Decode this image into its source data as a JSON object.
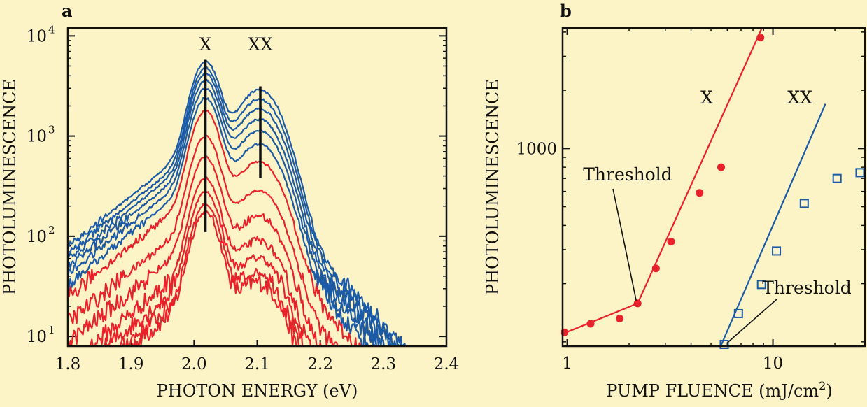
{
  "panel_labels": {
    "a": "a",
    "b": "b"
  },
  "chart_data": [
    {
      "type": "line",
      "panel": "a",
      "xlabel": "PHOTON ENERGY (eV)",
      "ylabel": "PHOTOLUMINESCENCE",
      "xlim": [
        1.8,
        2.4
      ],
      "ylim": [
        8,
        12000
      ],
      "yscale": "log",
      "xticks": [
        1.8,
        1.9,
        2.0,
        2.1,
        2.2,
        2.3,
        2.4
      ],
      "xtick_labels": [
        "1.8",
        "1.9",
        "2.0",
        "2.1",
        "2.2",
        "2.3",
        "2.4"
      ],
      "yticks": [
        10,
        100,
        1000,
        10000
      ],
      "ytick_labels": [
        {
          "base": "10",
          "exp": "1"
        },
        {
          "base": "10",
          "exp": "2"
        },
        {
          "base": "10",
          "exp": "3"
        },
        {
          "base": "10",
          "exp": "4"
        }
      ],
      "markers": [
        {
          "label": "X",
          "x": 2.018,
          "ytop": 7000,
          "ybottom": 110
        },
        {
          "label": "XX",
          "x": 2.105,
          "ytop": 3800,
          "ybottom": 380
        }
      ],
      "series_template": {
        "xx_ratio": 0.38,
        "left_tail_decay": 0.085,
        "right_tail_decay": 0.065
      },
      "series": [
        {
          "name": "red-1",
          "color": "#e8212a",
          "peak": 175,
          "xx_ratio": 0.15
        },
        {
          "name": "red-2",
          "color": "#e8212a",
          "peak": 210,
          "xx_ratio": 0.16
        },
        {
          "name": "red-3",
          "color": "#e8212a",
          "peak": 280,
          "xx_ratio": 0.17
        },
        {
          "name": "red-4",
          "color": "#e8212a",
          "peak": 380,
          "xx_ratio": 0.19
        },
        {
          "name": "red-5",
          "color": "#e8212a",
          "peak": 620,
          "xx_ratio": 0.21
        },
        {
          "name": "red-6",
          "color": "#e8212a",
          "peak": 1000,
          "xx_ratio": 0.24
        },
        {
          "name": "red-7",
          "color": "#e8212a",
          "peak": 1800,
          "xx_ratio": 0.26
        },
        {
          "name": "blue-1",
          "color": "#1b5aa6",
          "peak": 2400,
          "xx_ratio": 0.3
        },
        {
          "name": "blue-2",
          "color": "#1b5aa6",
          "peak": 3000,
          "xx_ratio": 0.33
        },
        {
          "name": "blue-3",
          "color": "#1b5aa6",
          "peak": 3600,
          "xx_ratio": 0.36
        },
        {
          "name": "blue-4",
          "color": "#1b5aa6",
          "peak": 4200,
          "xx_ratio": 0.4
        },
        {
          "name": "blue-5",
          "color": "#1b5aa6",
          "peak": 4800,
          "xx_ratio": 0.44
        },
        {
          "name": "blue-6",
          "color": "#1b5aa6",
          "peak": 5600,
          "xx_ratio": 0.47
        }
      ]
    },
    {
      "type": "scatter",
      "panel": "b",
      "xlabel": {
        "text": "PUMP FLUENCE (mJ/cm",
        "sup": "2",
        "tail": ")"
      },
      "ylabel": "PHOTOLUMINESCENCE",
      "xlim": [
        0.95,
        28
      ],
      "ylim": [
        95,
        4200
      ],
      "xscale": "log",
      "yscale": "log",
      "xticks": [
        1,
        10
      ],
      "xtick_labels": [
        "1",
        "10"
      ],
      "yticks": [
        1000
      ],
      "ytick_labels": [
        "1000"
      ],
      "series": [
        {
          "name": "X",
          "marker": "filled-circle",
          "color": "#e8212a",
          "x": [
            0.97,
            1.3,
            1.8,
            2.2,
            2.7,
            3.2,
            4.4,
            5.6,
            8.7
          ],
          "y": [
            112,
            124,
            132,
            158,
            240,
            330,
            590,
            800,
            3750
          ],
          "fit_lines": [
            {
              "x": [
                0.97,
                2.2
              ],
              "y": [
                111,
                158
              ]
            },
            {
              "x": [
                2.2,
                8.8
              ],
              "y": [
                158,
                4150
              ]
            }
          ]
        },
        {
          "name": "XX",
          "marker": "open-square",
          "color": "#1b5aa6",
          "x": [
            5.8,
            6.8,
            8.8,
            10.4,
            14.2,
            20.5,
            26.5
          ],
          "y": [
            97,
            140,
            198,
            295,
            520,
            700,
            750
          ],
          "fit_lines": [
            {
              "x": [
                5.6,
                18.0
              ],
              "y": [
                96,
                1700
              ]
            }
          ]
        }
      ],
      "annotations": [
        {
          "text": "X",
          "near": "X series"
        },
        {
          "text": "XX",
          "near": "XX series"
        },
        {
          "text": "Threshold",
          "points_to": "X threshold"
        },
        {
          "text": "Threshold",
          "points_to": "XX threshold"
        }
      ]
    }
  ]
}
